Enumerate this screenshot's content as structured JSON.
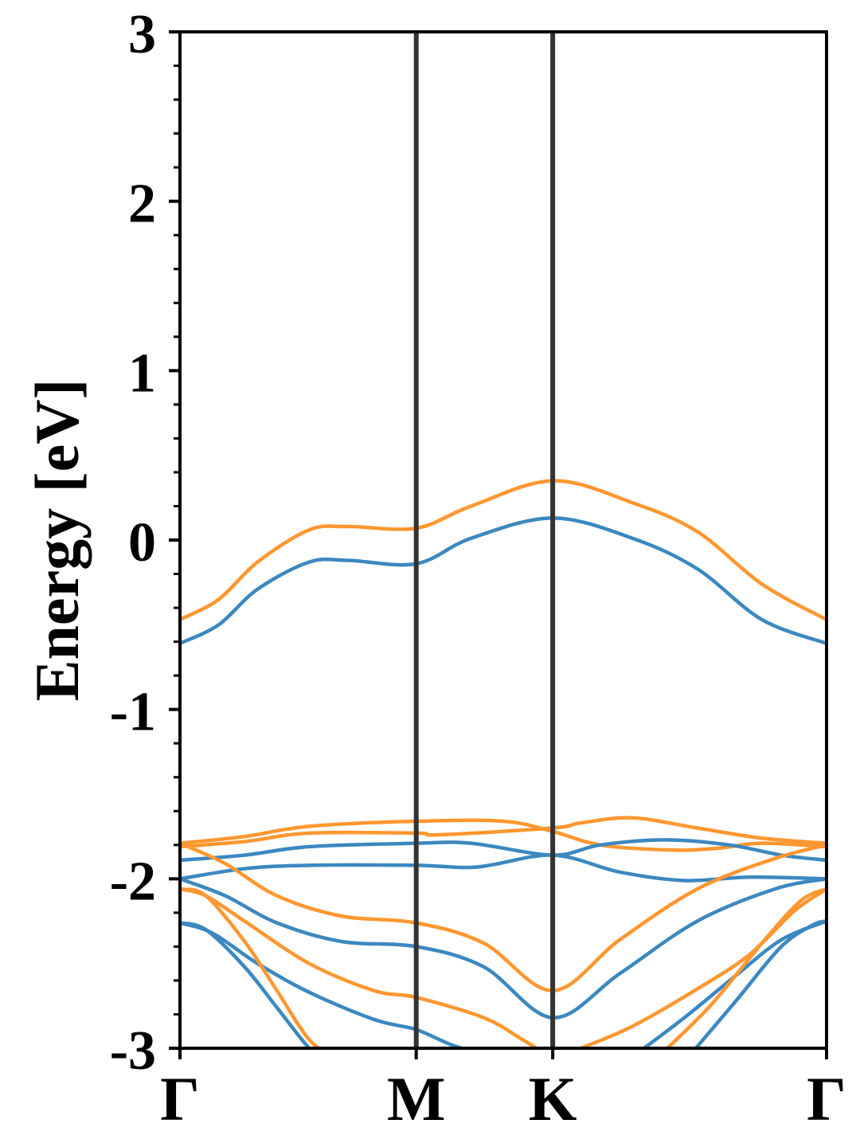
{
  "chart_data": {
    "type": "line",
    "title": "",
    "xlabel": "",
    "ylabel": "Energy [eV]",
    "ylim": [
      -3,
      3
    ],
    "xlim": [
      0,
      1
    ],
    "y_ticks": [
      "3",
      "2",
      "1",
      "0",
      "-1",
      "-2",
      "-3"
    ],
    "y_tick_values": [
      3,
      2,
      1,
      0,
      -1,
      -2,
      -3
    ],
    "y_minor_step": 0.2,
    "high_symmetry_points": [
      {
        "label": "Γ",
        "x": 0.0
      },
      {
        "label": "M",
        "x": 0.3654
      },
      {
        "label": "K",
        "x": 0.5765
      },
      {
        "label": "Γ",
        "x": 1.0
      }
    ],
    "grid": false,
    "legend": "none",
    "colors": {
      "blue": "#3c88c0",
      "orange": "#ff9730",
      "divider": "#333333",
      "axis": "#000000"
    },
    "series": [
      {
        "color": "blue",
        "x": [
          0,
          0.06,
          0.12,
          0.2,
          0.26,
          0.3654,
          0.45,
          0.5765,
          0.7,
          0.8,
          0.9,
          1.0
        ],
        "y": [
          -0.61,
          -0.5,
          -0.29,
          -0.13,
          -0.12,
          -0.14,
          0.01,
          0.13,
          0.01,
          -0.17,
          -0.47,
          -0.61
        ]
      },
      {
        "color": "orange",
        "x": [
          0,
          0.06,
          0.12,
          0.2,
          0.26,
          0.3654,
          0.45,
          0.5765,
          0.7,
          0.8,
          0.9,
          1.0
        ],
        "y": [
          -0.47,
          -0.35,
          -0.13,
          0.06,
          0.08,
          0.07,
          0.2,
          0.35,
          0.22,
          0.05,
          -0.26,
          -0.47
        ]
      },
      {
        "color": "orange",
        "x": [
          0,
          0.1,
          0.2,
          0.3654,
          0.4,
          0.5765,
          0.62,
          0.7,
          0.8,
          0.9,
          1.0
        ],
        "y": [
          -1.81,
          -1.78,
          -1.73,
          -1.73,
          -1.74,
          -1.7,
          -1.67,
          -1.64,
          -1.7,
          -1.76,
          -1.79
        ]
      },
      {
        "color": "orange",
        "x": [
          0,
          0.1,
          0.2,
          0.3654,
          0.5,
          0.5765,
          0.65,
          0.76,
          0.83,
          0.9,
          1.0
        ],
        "y": [
          -1.79,
          -1.75,
          -1.69,
          -1.66,
          -1.66,
          -1.72,
          -1.8,
          -1.83,
          -1.82,
          -1.79,
          -1.81
        ]
      },
      {
        "color": "blue",
        "x": [
          0,
          0.1,
          0.2,
          0.3654,
          0.45,
          0.5765,
          0.65,
          0.75,
          0.85,
          0.93,
          1.0
        ],
        "y": [
          -1.89,
          -1.86,
          -1.81,
          -1.79,
          -1.79,
          -1.86,
          -1.8,
          -1.77,
          -1.8,
          -1.86,
          -1.89
        ]
      },
      {
        "color": "blue",
        "x": [
          0,
          0.1,
          0.2,
          0.3654,
          0.46,
          0.5765,
          0.68,
          0.78,
          0.88,
          1.0
        ],
        "y": [
          -2.0,
          -1.94,
          -1.92,
          -1.92,
          -1.93,
          -1.86,
          -1.96,
          -2.01,
          -1.99,
          -2.0
        ]
      },
      {
        "color": "orange",
        "x": [
          0,
          0.07,
          0.15,
          0.25,
          0.3654,
          0.47,
          0.5765,
          0.68,
          0.8,
          0.92,
          1.0
        ],
        "y": [
          -1.79,
          -1.91,
          -2.1,
          -2.22,
          -2.26,
          -2.38,
          -2.66,
          -2.36,
          -2.06,
          -1.88,
          -1.8
        ]
      },
      {
        "color": "blue",
        "x": [
          0,
          0.07,
          0.15,
          0.25,
          0.3654,
          0.47,
          0.5765,
          0.68,
          0.8,
          0.92,
          1.0
        ],
        "y": [
          -2.0,
          -2.1,
          -2.26,
          -2.37,
          -2.4,
          -2.52,
          -2.82,
          -2.56,
          -2.25,
          -2.06,
          -2.0
        ]
      },
      {
        "color": "orange",
        "x": [
          0,
          0.04,
          0.1,
          0.2,
          0.3,
          0.3654,
          0.47,
          0.53,
          0.5765
        ],
        "y": [
          -2.06,
          -2.1,
          -2.25,
          -2.5,
          -2.66,
          -2.7,
          -2.82,
          -2.95,
          -3.06
        ]
      },
      {
        "color": "orange",
        "x": [
          0.62,
          0.7,
          0.8,
          0.88,
          0.95,
          1.0
        ],
        "y": [
          -3.0,
          -2.87,
          -2.65,
          -2.45,
          -2.19,
          -2.06
        ]
      },
      {
        "color": "blue",
        "x": [
          0,
          0.05,
          0.12,
          0.2,
          0.3,
          0.3654,
          0.42,
          0.48
        ],
        "y": [
          -2.26,
          -2.32,
          -2.5,
          -2.67,
          -2.83,
          -2.89,
          -2.98,
          -3.05
        ]
      },
      {
        "color": "blue",
        "x": [
          0.7,
          0.78,
          0.86,
          0.93,
          1.0
        ],
        "y": [
          -3.05,
          -2.82,
          -2.57,
          -2.36,
          -2.25
        ]
      },
      {
        "color": "orange",
        "x": [
          0,
          0.04,
          0.1,
          0.15,
          0.2,
          0.24
        ],
        "y": [
          -2.06,
          -2.1,
          -2.37,
          -2.66,
          -2.95,
          -3.05
        ]
      },
      {
        "color": "orange",
        "x": [
          0.74,
          0.82,
          0.9,
          0.96,
          1.0
        ],
        "y": [
          -3.05,
          -2.75,
          -2.38,
          -2.13,
          -2.06
        ]
      },
      {
        "color": "blue",
        "x": [
          0,
          0.04,
          0.1,
          0.15,
          0.2,
          0.23
        ],
        "y": [
          -2.26,
          -2.3,
          -2.52,
          -2.76,
          -3.0,
          -3.08
        ]
      },
      {
        "color": "blue",
        "x": [
          0.78,
          0.86,
          0.93,
          0.98,
          1.0
        ],
        "y": [
          -3.08,
          -2.72,
          -2.4,
          -2.27,
          -2.25
        ]
      }
    ]
  }
}
